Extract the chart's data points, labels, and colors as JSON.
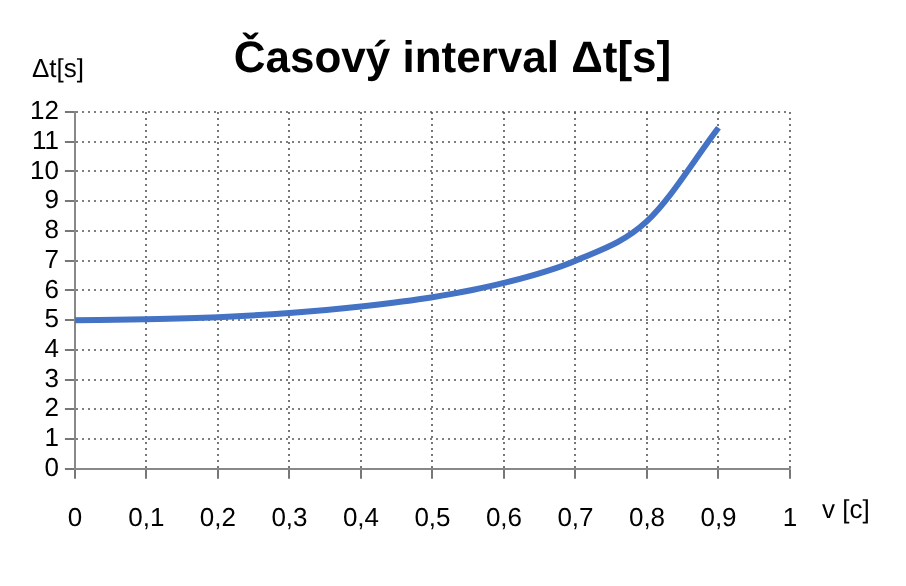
{
  "chart_data": {
    "type": "line",
    "title": "Časový interval Δt[s]",
    "xlabel": "v [c]",
    "ylabel": "Δt[s]",
    "x": [
      0,
      0.1,
      0.2,
      0.3,
      0.4,
      0.5,
      0.6,
      0.7,
      0.8,
      0.9
    ],
    "series": [
      {
        "color": "#4472c4",
        "values": [
          5,
          5.03,
          5.1,
          5.24,
          5.46,
          5.77,
          6.25,
          7,
          8.33,
          11.47
        ]
      }
    ],
    "xlim": [
      0,
      1
    ],
    "xticks": [
      0,
      {
        "value": 0.1,
        "label": "0,1"
      },
      {
        "value": 0.2,
        "label": "0,2"
      },
      {
        "value": 0.3,
        "label": "0,3"
      },
      {
        "value": 0.4,
        "label": "0,4"
      },
      {
        "value": 0.5,
        "label": "0,5"
      },
      {
        "value": 0.6,
        "label": "0,6"
      },
      {
        "value": 0.7,
        "label": "0,7"
      },
      {
        "value": 0.8,
        "label": "0,8"
      },
      {
        "value": 0.9,
        "label": "0,9"
      },
      1
    ],
    "ylim": [
      0,
      12
    ],
    "yticks": [
      0,
      1,
      2,
      3,
      4,
      5,
      6,
      7,
      8,
      9,
      10,
      11,
      12
    ],
    "grid": true,
    "legend": false,
    "marker": "none",
    "line_style": "solid"
  }
}
